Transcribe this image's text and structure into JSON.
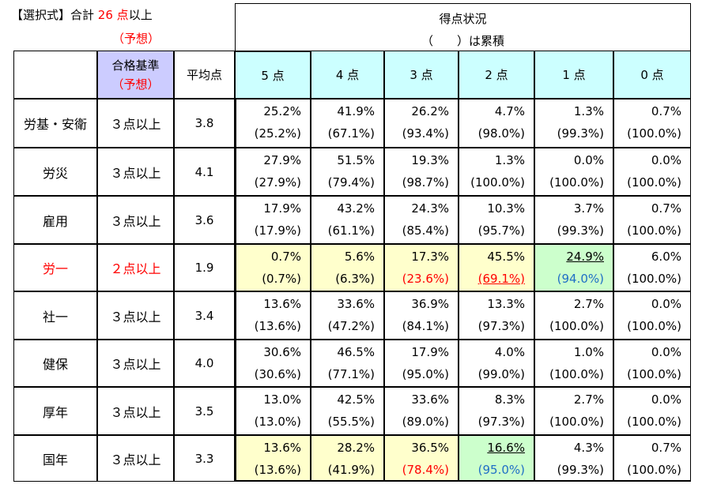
{
  "header": {
    "title_prefix": "【選択式】合計",
    "title_total": "26",
    "title_suffix_1": "点",
    "title_suffix_2": "以上",
    "title_note": "（予想）",
    "score_title": "得点状況",
    "score_note": "（　　）は累積"
  },
  "columns": {
    "criteria_line1": "合格基準",
    "criteria_line2": "（予想）",
    "average": "平均点",
    "scores": [
      "5 点",
      "4 点",
      "3 点",
      "2 点",
      "1 点",
      "0 点"
    ]
  },
  "colors": {
    "cyan_header": "#ccffff",
    "lavender_header": "#ccccff",
    "yellow_highlight": "#ffffcc",
    "green_highlight": "#ccffcc",
    "red_text": "#ff0000",
    "blue_text": "#1f6fc6"
  },
  "rows": [
    {
      "subject": "労基・安衛",
      "criteria": "３点以上",
      "average": "3.8",
      "pct": [
        "25.2%",
        "41.9%",
        "26.2%",
        "4.7%",
        "1.3%",
        "0.7%"
      ],
      "cum": [
        "(25.2%)",
        "(67.1%)",
        "(93.4%)",
        "(98.0%)",
        "(99.3%)",
        "(100.0%)"
      ]
    },
    {
      "subject": "労災",
      "criteria": "３点以上",
      "average": "4.1",
      "pct": [
        "27.9%",
        "51.5%",
        "19.3%",
        "1.3%",
        "0.0%",
        "0.0%"
      ],
      "cum": [
        "(27.9%)",
        "(79.4%)",
        "(98.7%)",
        "(100.0%)",
        "(100.0%)",
        "(100.0%)"
      ]
    },
    {
      "subject": "雇用",
      "criteria": "３点以上",
      "average": "3.6",
      "pct": [
        "17.9%",
        "43.2%",
        "24.3%",
        "10.3%",
        "3.7%",
        "0.7%"
      ],
      "cum": [
        "(17.9%)",
        "(61.1%)",
        "(85.4%)",
        "(95.7%)",
        "(99.3%)",
        "(100.0%)"
      ]
    },
    {
      "subject": "労一",
      "criteria": "２点以上",
      "average": "1.9",
      "pct": [
        "0.7%",
        "5.6%",
        "17.3%",
        "45.5%",
        "24.9%",
        "6.0%"
      ],
      "cum": [
        "(0.7%)",
        "(6.3%)",
        "(23.6%)",
        "(69.1%)",
        "(94.0%)",
        "(100.0%)"
      ]
    },
    {
      "subject": "社一",
      "criteria": "３点以上",
      "average": "3.4",
      "pct": [
        "13.6%",
        "33.6%",
        "36.9%",
        "13.3%",
        "2.7%",
        "0.0%"
      ],
      "cum": [
        "(13.6%)",
        "(47.2%)",
        "(84.1%)",
        "(97.3%)",
        "(100.0%)",
        "(100.0%)"
      ]
    },
    {
      "subject": "健保",
      "criteria": "３点以上",
      "average": "4.0",
      "pct": [
        "30.6%",
        "46.5%",
        "17.9%",
        "4.0%",
        "1.0%",
        "0.0%"
      ],
      "cum": [
        "(30.6%)",
        "(77.1%)",
        "(95.0%)",
        "(99.0%)",
        "(100.0%)",
        "(100.0%)"
      ]
    },
    {
      "subject": "厚年",
      "criteria": "３点以上",
      "average": "3.5",
      "pct": [
        "13.0%",
        "42.5%",
        "33.6%",
        "8.3%",
        "2.7%",
        "0.0%"
      ],
      "cum": [
        "(13.0%)",
        "(55.5%)",
        "(89.0%)",
        "(97.3%)",
        "(100.0%)",
        "(100.0%)"
      ]
    },
    {
      "subject": "国年",
      "criteria": "３点以上",
      "average": "3.3",
      "pct": [
        "13.6%",
        "28.2%",
        "36.5%",
        "16.6%",
        "4.3%",
        "0.7%"
      ],
      "cum": [
        "(13.6%)",
        "(41.9%)",
        "(78.4%)",
        "(95.0%)",
        "(99.3%)",
        "(100.0%)"
      ]
    }
  ]
}
